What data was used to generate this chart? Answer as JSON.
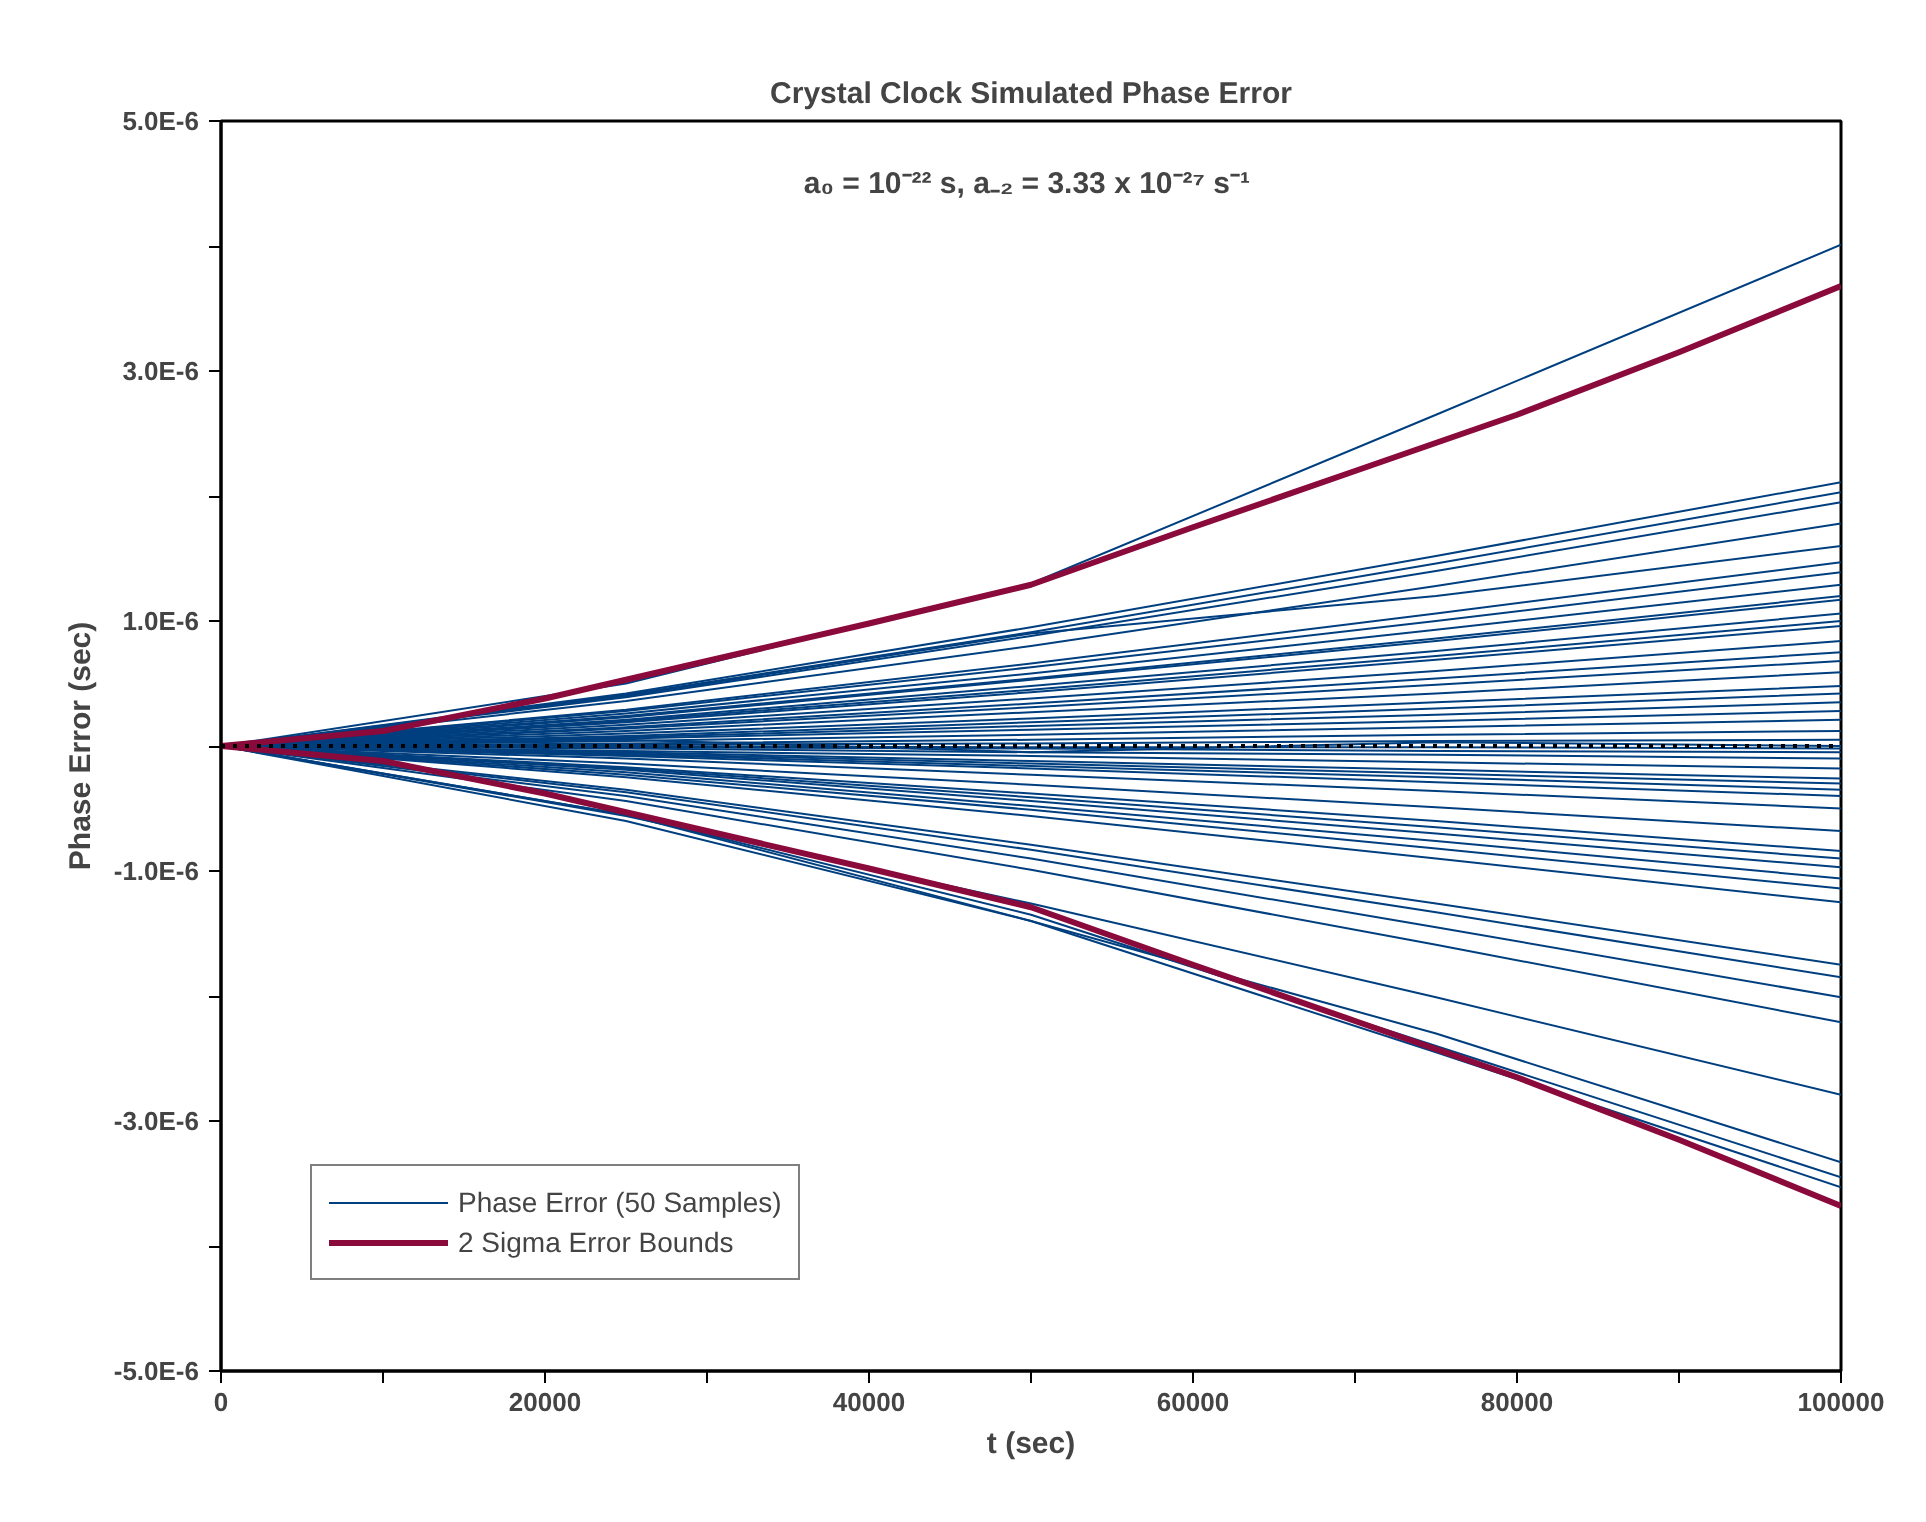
{
  "chart_data": {
    "type": "line",
    "title": "Crystal Clock Simulated Phase Error",
    "xlabel": "t (sec)",
    "ylabel": "Phase Error (sec)",
    "annotations": [
      "a₀ = 10⁻²² s,  a₋₂ = 3.33 x 10⁻²⁷ s⁻¹"
    ],
    "x": [
      0,
      25000,
      50000,
      75000,
      100000
    ],
    "xlim": [
      0,
      100000
    ],
    "xticks": [
      0,
      {
        "value": 10000,
        "label": null
      },
      20000,
      {
        "value": 30000,
        "label": null
      },
      40000,
      {
        "value": 50000,
        "label": null
      },
      60000,
      {
        "value": 70000,
        "label": null
      },
      80000,
      {
        "value": 90000,
        "label": null
      },
      100000
    ],
    "ylim": [
      -5e-06,
      5e-06
    ],
    "yticks": [
      {
        "value": -5e-06,
        "label": "-5.0E-6"
      },
      {
        "value": -4e-06,
        "label": null
      },
      {
        "value": -3e-06,
        "label": "-3.0E-6"
      },
      {
        "value": -2e-06,
        "label": null
      },
      {
        "value": -1e-06,
        "label": "-1.0E-6"
      },
      {
        "value": 0,
        "label": null
      },
      {
        "value": 1e-06,
        "label": "1.0E-6"
      },
      {
        "value": 2e-06,
        "label": null
      },
      {
        "value": 3e-06,
        "label": "3.0E-6"
      },
      {
        "value": 4e-06,
        "label": null
      },
      {
        "value": 5e-06,
        "label": "5.0E-6"
      }
    ],
    "grid": false,
    "legend": "bottom left",
    "ref_lines": [
      {
        "axis": "y",
        "value": 0,
        "label": null,
        "color": "#000000",
        "line_style": "dotted"
      }
    ],
    "series": [
      {
        "name": "Phase Error (50 Samples)",
        "color": "#003f7f",
        "values": [
          0,
          5e-07,
          1.3e-06,
          2.65e-06,
          4.01e-06
        ]
      },
      {
        "color": "#003f7f",
        "values": [
          0,
          4.2e-07,
          9.5e-07,
          1.52e-06,
          2.11e-06
        ]
      },
      {
        "color": "#003f7f",
        "values": [
          0,
          4.1e-07,
          9.1e-07,
          1.46e-06,
          2.03e-06
        ]
      },
      {
        "color": "#003f7f",
        "values": [
          0,
          3.9e-07,
          8.8e-07,
          1.4e-06,
          1.95e-06
        ]
      },
      {
        "color": "#003f7f",
        "values": [
          0,
          3.6e-07,
          8e-07,
          1.28e-06,
          1.78e-06
        ]
      },
      {
        "color": "#003f7f",
        "values": [
          0,
          2.9e-07,
          6.6e-07,
          1.06e-06,
          1.47e-06
        ]
      },
      {
        "color": "#003f7f",
        "values": [
          0,
          2.8e-07,
          6.3e-07,
          1e-06,
          1.39e-06
        ]
      },
      {
        "color": "#003f7f",
        "values": [
          0,
          2.6e-07,
          5.8e-07,
          9.3e-07,
          1.29e-06
        ]
      },
      {
        "color": "#003f7f",
        "values": [
          0,
          2.3e-07,
          5.3e-07,
          8.4e-07,
          1.17e-06
        ]
      },
      {
        "color": "#003f7f",
        "values": [
          0,
          2.1e-07,
          4.8e-07,
          7.6e-07,
          1.06e-06
        ]
      },
      {
        "color": "#003f7f",
        "values": [
          0,
          1.9e-07,
          4.3e-07,
          6.9e-07,
          9.6e-07
        ]
      },
      {
        "color": "#003f7f",
        "values": [
          0,
          1.7e-07,
          3.8e-07,
          6e-07,
          8.4e-07
        ]
      },
      {
        "color": "#003f7f",
        "values": [
          0,
          1.4e-07,
          3.1e-07,
          4.9e-07,
          6.8e-07
        ]
      },
      {
        "color": "#003f7f",
        "values": [
          0,
          1.2e-07,
          2.7e-07,
          4.2e-07,
          5.9e-07
        ]
      },
      {
        "color": "#003f7f",
        "values": [
          0,
          1e-07,
          2.2e-07,
          3.5e-07,
          4.8e-07
        ]
      },
      {
        "color": "#003f7f",
        "values": [
          0,
          7e-08,
          1.6e-07,
          2.5e-07,
          3.5e-07
        ]
      },
      {
        "color": "#003f7f",
        "values": [
          0,
          4e-08,
          9e-08,
          1.5e-07,
          2.1e-07
        ]
      },
      {
        "color": "#003f7f",
        "values": [
          0,
          -2e-08,
          -5e-08,
          -7e-08,
          -1e-07
        ]
      },
      {
        "color": "#003f7f",
        "values": [
          0,
          -4e-08,
          -8e-08,
          -1.3e-07,
          -1.8e-07
        ]
      },
      {
        "color": "#003f7f",
        "values": [
          0,
          -5e-08,
          -1.2e-07,
          -1.9e-07,
          -2.6e-07
        ]
      },
      {
        "color": "#003f7f",
        "values": [
          0,
          -7e-08,
          -1.6e-07,
          -2.5e-07,
          -3.5e-07
        ]
      },
      {
        "color": "#003f7f",
        "values": [
          0,
          -1.4e-07,
          -3.1e-07,
          -4.9e-07,
          -6.8e-07
        ]
      },
      {
        "color": "#003f7f",
        "values": [
          0,
          -1.7e-07,
          -3.8e-07,
          -6e-07,
          -8.4e-07
        ]
      },
      {
        "color": "#003f7f",
        "values": [
          0,
          -1.9e-07,
          -4.4e-07,
          -7e-07,
          -9.7e-07
        ]
      },
      {
        "color": "#003f7f",
        "values": [
          0,
          -2.1e-07,
          -4.8e-07,
          -7.6e-07,
          -1.06e-06
        ]
      },
      {
        "color": "#003f7f",
        "values": [
          0,
          -2.3e-07,
          -5.1e-07,
          -8.2e-07,
          -1.14e-06
        ]
      },
      {
        "color": "#003f7f",
        "values": [
          0,
          -2.5e-07,
          -5.6e-07,
          -9e-07,
          -1.25e-06
        ]
      },
      {
        "color": "#003f7f",
        "values": [
          0,
          -3.5e-07,
          -7.9e-07,
          -1.26e-06,
          -1.75e-06
        ]
      },
      {
        "color": "#003f7f",
        "values": [
          0,
          -3.7e-07,
          -8.3e-07,
          -1.33e-06,
          -1.85e-06
        ]
      },
      {
        "color": "#003f7f",
        "values": [
          0,
          -4e-07,
          -9e-07,
          -1.45e-06,
          -2.01e-06
        ]
      },
      {
        "color": "#003f7f",
        "values": [
          0,
          -4.4e-07,
          -9.9e-07,
          -1.59e-06,
          -2.21e-06
        ]
      },
      {
        "color": "#003f7f",
        "values": [
          0,
          -5.6e-07,
          -1.26e-06,
          -2.01e-06,
          -2.79e-06
        ]
      },
      {
        "color": "#003f7f",
        "values": [
          0,
          -6e-07,
          -1.4e-06,
          -2.3e-06,
          -3.33e-06
        ]
      },
      {
        "color": "#003f7f",
        "values": [
          0,
          -5.5e-07,
          -1.35e-06,
          -2.4e-06,
          -3.45e-06
        ]
      },
      {
        "color": "#003f7f",
        "values": [
          0,
          -5.5e-07,
          -1.4e-06,
          -2.45e-06,
          -3.53e-06
        ]
      },
      {
        "color": "#003f7f",
        "values": [
          0,
          5e-08,
          -5e-08,
          3e-08,
          0
        ]
      },
      {
        "color": "#003f7f",
        "values": [
          0,
          1e-08,
          2e-08,
          4e-08,
          5e-08
        ]
      },
      {
        "color": "#003f7f",
        "values": [
          0,
          -1e-08,
          -2e-08,
          -4e-08,
          -5e-08
        ]
      },
      {
        "color": "#003f7f",
        "values": [
          0,
          1.5e-07,
          3.4e-07,
          5.4e-07,
          7.5e-07
        ]
      },
      {
        "color": "#003f7f",
        "values": [
          0,
          6e-08,
          1.3e-07,
          2e-07,
          2.8e-07
        ]
      },
      {
        "color": "#003f7f",
        "values": [
          0,
          4e-07,
          9e-07,
          1.2e-06,
          1.6e-06
        ]
      },
      {
        "color": "#003f7f",
        "values": [
          0,
          2e-07,
          4.5e-07,
          7.2e-07,
          1e-06
        ]
      },
      {
        "color": "#003f7f",
        "values": [
          0,
          -8e-08,
          -1.8e-07,
          -2.9e-07,
          -4e-07
        ]
      },
      {
        "color": "#003f7f",
        "values": [
          0,
          -1e-07,
          -2.3e-07,
          -3.6e-07,
          -5e-07
        ]
      },
      {
        "color": "#003f7f",
        "values": [
          0,
          2e-08,
          5e-08,
          9e-08,
          1.2e-07
        ]
      },
      {
        "color": "#003f7f",
        "values": [
          0,
          0,
          -1e-08,
          -1e-08,
          -2e-08
        ]
      },
      {
        "color": "#003f7f",
        "values": [
          0,
          2.4e-07,
          5.4e-07,
          8.6e-07,
          1.2e-06
        ]
      },
      {
        "color": "#003f7f",
        "values": [
          0,
          -6e-08,
          -1.4e-07,
          -2.2e-07,
          -3e-07
        ]
      },
      {
        "color": "#003f7f",
        "values": [
          0,
          8e-08,
          1.9e-07,
          3e-07,
          4.2e-07
        ]
      },
      {
        "color": "#003f7f",
        "values": [
          0,
          -1.8e-07,
          -4.1e-07,
          -6.5e-07,
          -9e-07
        ]
      },
      {
        "name": "2 Sigma Error Bounds",
        "color": "#8b0a3c",
        "x": [
          0,
          10000,
          20000,
          30000,
          40000,
          50000,
          60000,
          70000,
          80000,
          90000,
          100000
        ],
        "values": [
          0,
          1.2e-07,
          3.8e-07,
          6.8e-07,
          9.8e-07,
          1.29e-06,
          1.75e-06,
          2.2e-06,
          2.65e-06,
          3.15e-06,
          3.68e-06
        ]
      },
      {
        "color": "#8b0a3c",
        "x": [
          0,
          10000,
          20000,
          30000,
          40000,
          50000,
          60000,
          70000,
          80000,
          90000,
          100000
        ],
        "values": [
          0,
          -1.2e-07,
          -3.8e-07,
          -6.8e-07,
          -9.8e-07,
          -1.29e-06,
          -1.75e-06,
          -2.2e-06,
          -2.65e-06,
          -3.15e-06,
          -3.68e-06
        ]
      }
    ]
  }
}
